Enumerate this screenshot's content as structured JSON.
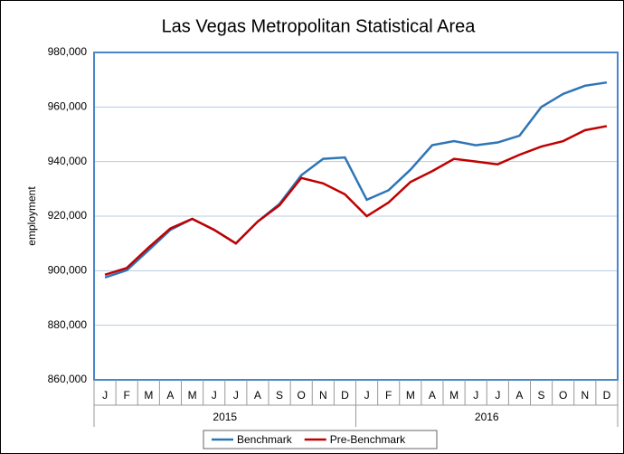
{
  "chart_data": {
    "type": "line",
    "title": "Las Vegas Metropolitan Statistical Area",
    "y_label": "employment",
    "categories": [
      "J",
      "F",
      "M",
      "A",
      "M",
      "J",
      "J",
      "A",
      "S",
      "O",
      "N",
      "D",
      "J",
      "F",
      "M",
      "A",
      "M",
      "J",
      "J",
      "A",
      "S",
      "O",
      "N",
      "D"
    ],
    "x_groups": [
      "2015",
      "2016"
    ],
    "series": [
      {
        "name": "Benchmark",
        "color": "#2e75b6",
        "values": [
          897500,
          900200,
          907500,
          915000,
          919000,
          915000,
          910000,
          918000,
          924500,
          935000,
          941000,
          941500,
          926000,
          929500,
          937000,
          946000,
          947500,
          946000,
          947000,
          949500,
          960000,
          964800,
          967800,
          969000
        ]
      },
      {
        "name": "Pre-Benchmark",
        "color": "#c00000",
        "values": [
          898500,
          901000,
          908500,
          915500,
          919000,
          915000,
          910000,
          918000,
          924000,
          934000,
          932000,
          928000,
          920000,
          925000,
          932500,
          936500,
          941000,
          940000,
          939000,
          942500,
          945500,
          947500,
          951500,
          953000
        ]
      }
    ],
    "ylim": [
      860000,
      980000
    ],
    "yticks": [
      {
        "value": 860000,
        "label": "860,000"
      },
      {
        "value": 880000,
        "label": "880,000"
      },
      {
        "value": 900000,
        "label": "900,000"
      },
      {
        "value": 920000,
        "label": "920,000"
      },
      {
        "value": 940000,
        "label": "940,000"
      },
      {
        "value": 960000,
        "label": "960,000"
      },
      {
        "value": 980000,
        "label": "980,000"
      }
    ],
    "grid": true,
    "legend": "bottom"
  }
}
